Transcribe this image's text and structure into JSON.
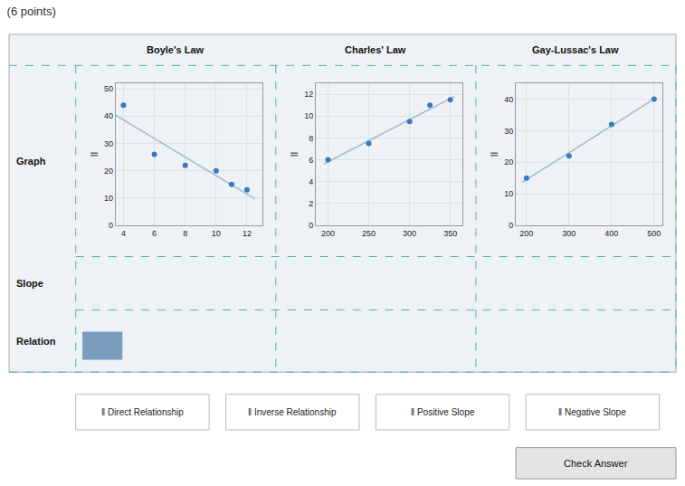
{
  "title": "(6 points)",
  "annotations": [
    "Graph",
    "Slope",
    "Relation",
    "‖ Direct Relationship",
    "‖ Inverse Relationship",
    "‖ Positive Slope",
    "‖ Negative Slope",
    "Check Answer"
  ],
  "chart_data": [
    {
      "type": "scatter",
      "title": "Boyle's Law",
      "y_label": "II",
      "xlim": [
        3.5,
        13
      ],
      "xticks": [
        4,
        6,
        8,
        10,
        12
      ],
      "ylim": [
        0,
        52
      ],
      "yticks": [
        0,
        10,
        20,
        30,
        40,
        50
      ],
      "grid": true,
      "series": [
        {
          "type": "line",
          "color": "#a0bbcf",
          "x": [
            3.5,
            12.5
          ],
          "values": [
            40.280702,
            9.775439
          ]
        },
        {
          "type": "scatter",
          "marker": "circle",
          "color": "#3a7abf",
          "x": [
            4.0,
            6.0,
            8.0,
            10.0,
            11.0,
            12.0
          ],
          "values": [
            44,
            26,
            22,
            20,
            15,
            13
          ]
        }
      ]
    },
    {
      "type": "scatter",
      "title": "Charles' Law",
      "y_label": "II",
      "xlim": [
        185,
        365
      ],
      "xticks": [
        200,
        250,
        300,
        350
      ],
      "ylim": [
        0,
        13
      ],
      "yticks": [
        0,
        2,
        4,
        6,
        8,
        10,
        12
      ],
      "grid": true,
      "series": [
        {
          "type": "line",
          "color": "#a0bbcf",
          "x": [
            195,
            355
          ],
          "values": [
            5.639655,
            11.791379
          ]
        },
        {
          "type": "scatter",
          "marker": "circle",
          "color": "#3a7abf",
          "x": [
            200,
            250,
            300,
            325,
            350
          ],
          "values": [
            6,
            7.5,
            9.5,
            11,
            11.5
          ]
        }
      ]
    },
    {
      "type": "scatter",
      "title": "Gay-Lussac's Law",
      "y_label": "II",
      "xlim": [
        175,
        520
      ],
      "xticks": [
        200,
        300,
        400,
        500
      ],
      "ylim": [
        0,
        45
      ],
      "yticks": [
        0,
        10,
        20,
        30,
        40
      ],
      "grid": true,
      "series": [
        {
          "type": "line",
          "color": "#a0bbcf",
          "x": [
            190,
            505
          ],
          "values": [
            13.65,
            40.425
          ]
        },
        {
          "type": "scatter",
          "marker": "circle",
          "color": "#3a7abf",
          "x": [
            200,
            300,
            400,
            500
          ],
          "values": [
            15,
            22,
            32,
            40
          ]
        }
      ]
    }
  ]
}
